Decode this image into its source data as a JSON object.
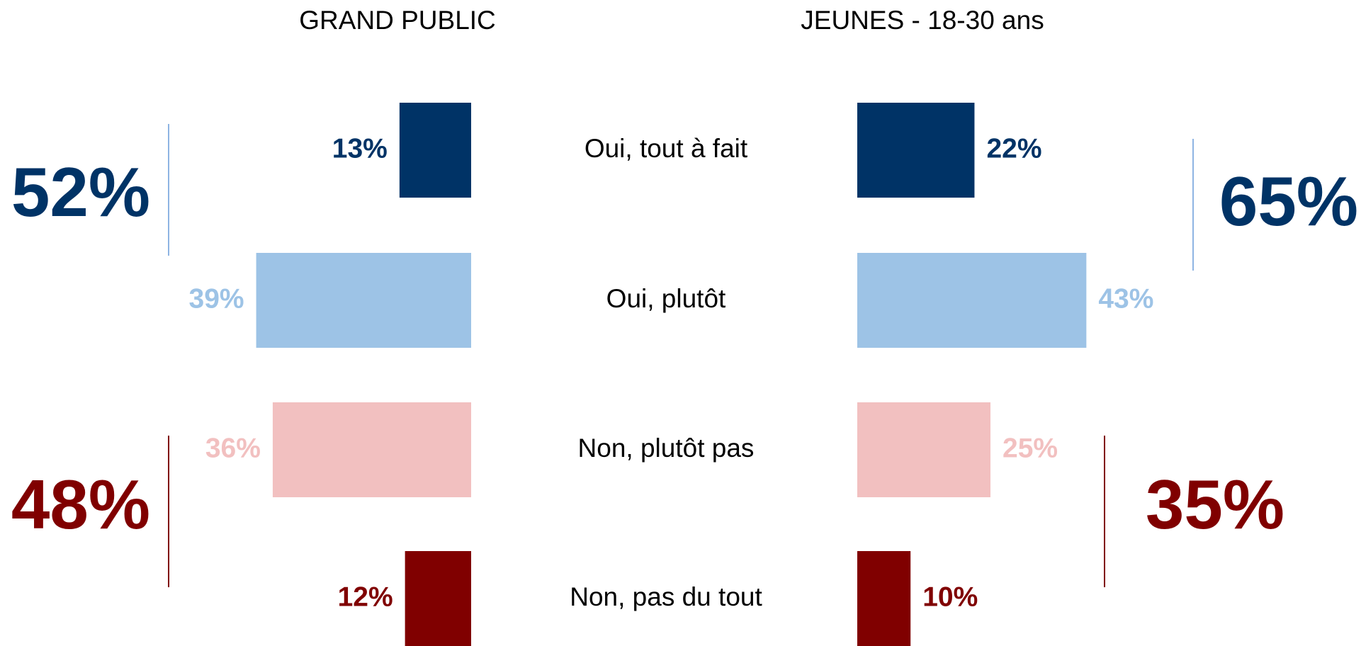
{
  "chart_data": [
    {
      "type": "bar",
      "orientation": "horizontal",
      "direction": "left",
      "title": "GRAND PUBLIC",
      "categories": [
        "Oui, tout à fait",
        "Oui, plutôt",
        "Non, plutôt pas",
        "Non, pas du tout"
      ],
      "values": [
        13,
        39,
        36,
        12
      ],
      "value_labels": [
        "13%",
        "39%",
        "36%",
        "12%"
      ],
      "colors": [
        "#003366",
        "#9dc3e6",
        "#f2c0c0",
        "#800000"
      ],
      "xlim": [
        0,
        100
      ],
      "totals": [
        {
          "value": 52,
          "label": "52%",
          "color": "#003366"
        },
        {
          "value": 48,
          "label": "48%",
          "color": "#800000"
        }
      ]
    },
    {
      "type": "bar",
      "orientation": "horizontal",
      "direction": "right",
      "title": "JEUNES - 18-30 ans",
      "values": [
        22,
        43,
        25,
        10
      ],
      "value_labels": [
        "22%",
        "43%",
        "25%",
        "10%"
      ],
      "colors": [
        "#003366",
        "#9dc3e6",
        "#f2c0c0",
        "#800000"
      ],
      "xlim": [
        0,
        100
      ],
      "totals": [
        {
          "value": 65,
          "label": "65%",
          "color": "#003366"
        },
        {
          "value": 35,
          "label": "35%",
          "color": "#800000"
        }
      ]
    }
  ]
}
